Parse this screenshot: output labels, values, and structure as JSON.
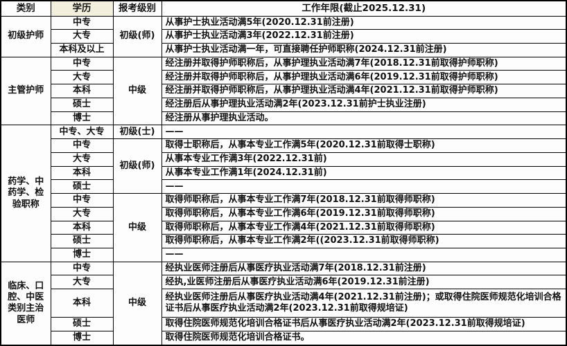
{
  "header": {
    "col_category": "类别",
    "col_education": "学历",
    "col_level": "报考级别",
    "col_years": "工作年限(截止2025.12.31)"
  },
  "colors": {
    "border": "#000000",
    "text": "#111111",
    "background": "#fdfdfd",
    "education_header_bg": "#f2efdd"
  },
  "sections": [
    {
      "category": "初级护师",
      "groups": [
        {
          "level": "初级(师)",
          "rows": [
            {
              "education": "中专",
              "requirement": "从事护士执业活动满5年(2020.12.31前注册)"
            },
            {
              "education": "大专",
              "requirement": "从事护士执业活动满3年(2022.12.31前注册)"
            },
            {
              "education": "本科及以上",
              "requirement": "从事护士执业活动满一年，可直接聘任护师职称(2024.12.31前注册)"
            }
          ]
        }
      ]
    },
    {
      "category": "主管护师",
      "groups": [
        {
          "level": "中级",
          "rows": [
            {
              "education": "中专",
              "requirement": "经注册并取得护师职称后，从事护理执业活动满7年(2018.12.31前取得护师职称)"
            },
            {
              "education": "大专",
              "requirement": "经注册并取得护师职称后，从事护理执业活动满6年(2019.12.31前取得护师职称)"
            },
            {
              "education": "本科",
              "requirement": "经注册并取得护师职称后，从事护理执业活动满4年(2021.12.31前取得护师职称)"
            },
            {
              "education": "硕士",
              "requirement": "经注册后从事护理执业活动满2年(2023.12.31前护士执业注册)"
            },
            {
              "education": "博士",
              "requirement": "经注册从事护理执业活动。"
            }
          ]
        }
      ]
    },
    {
      "category": "药学、中药学、检验职称",
      "groups": [
        {
          "level": "初级(士)",
          "rows": [
            {
              "education": "中专、大专",
              "requirement": "——"
            }
          ]
        },
        {
          "level": "初级(师)",
          "rows": [
            {
              "education": "中专",
              "requirement": "取得士职称后，从事本专业工作满5年(2020.12.31前取得士职称)"
            },
            {
              "education": "大专",
              "requirement": "从事本专业工作满3年(2022.12.31前)"
            },
            {
              "education": "本科",
              "requirement": "从事本专业工作满1年(2024.12.31前)"
            },
            {
              "education": "硕士",
              "requirement": "——"
            }
          ]
        },
        {
          "level": "中级",
          "rows": [
            {
              "education": "中专",
              "requirement": "取得师职称后，从事本专业工作满7年(2018.12.31前取得师职称)"
            },
            {
              "education": "大专",
              "requirement": "取得师职称后，从事本专业工作满6年(2019.12.31前取得师职称)"
            },
            {
              "education": "本科",
              "requirement": "取得师职称后，从事本专业工作满4年(2021.12.31前取得师职称)"
            },
            {
              "education": "硕士",
              "requirement": "取得师职称后，从事本专业工作满2年((2023.12.31前取得师职称)"
            },
            {
              "education": "博士",
              "requirement": "——"
            }
          ]
        }
      ]
    },
    {
      "category": "临床、口腔、中医类别主治医师",
      "groups": [
        {
          "level": "中级",
          "rows": [
            {
              "education": "中专",
              "requirement": "经执业医师注册后从事医疗执业活动满7年(2018.12.31前注册)"
            },
            {
              "education": "大专",
              "requirement": "经执,业医师注册后从事医疗执业活动满6年(2019.12.31前注册)"
            },
            {
              "education": "本科",
              "requirement": "经执业医师注册后从事医疗执业活动满4年(2021.12.31前注册)；或取得住院医师规范化培训合格证书后从事医疗执业活动满2年(2023.12.31前取得规培证)"
            },
            {
              "education": "硕士",
              "requirement": "取得住院医师规范化培训合格证书后从事医疗执业活动满2年(2023.12.31前取得规培证)"
            },
            {
              "education": "博士",
              "requirement": "取得住院医师规范化培训合格证书。"
            }
          ]
        }
      ]
    }
  ]
}
